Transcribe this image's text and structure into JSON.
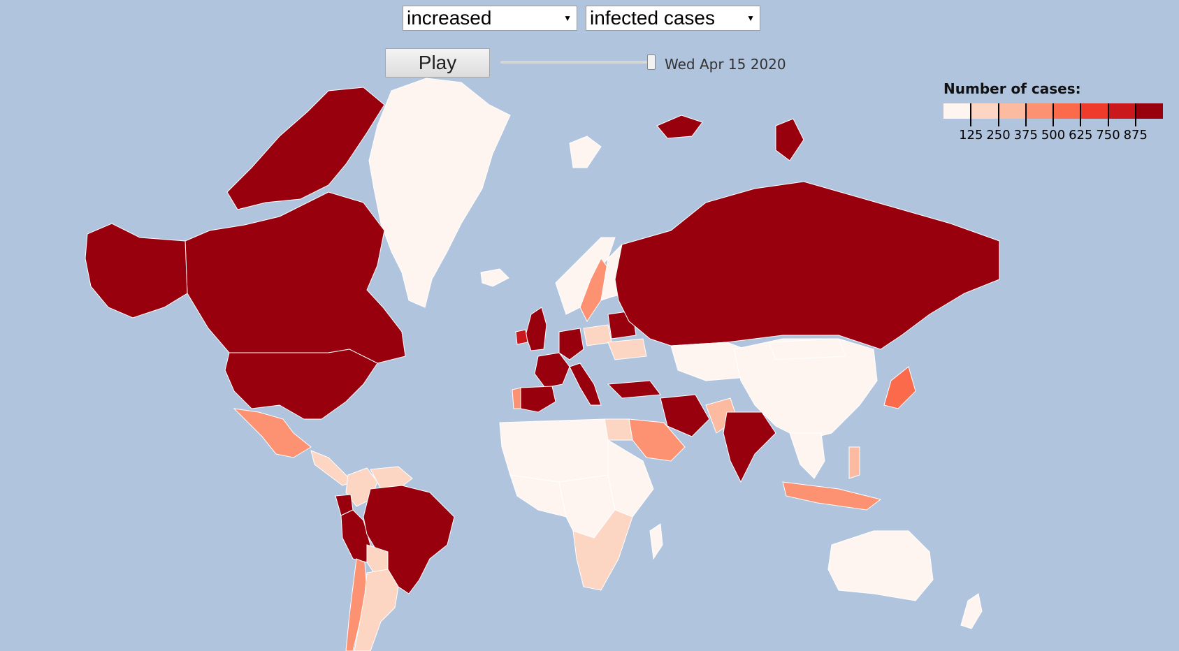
{
  "controls": {
    "mode_select": {
      "value": "increased"
    },
    "metric_select": {
      "value": "infected cases"
    },
    "play_button": {
      "label": "Play"
    },
    "date_slider": {
      "position": 1.0
    },
    "date_label": "Wed Apr 15 2020"
  },
  "legend": {
    "title": "Number of cases:",
    "colors": [
      "#fff5f0",
      "#fdd5c3",
      "#fcbba1",
      "#fc9272",
      "#fb6a4a",
      "#ef3b2c",
      "#cb181d",
      "#99000d"
    ],
    "ticks": [
      "125",
      "250",
      "375",
      "500",
      "625",
      "750",
      "875"
    ]
  },
  "map": {
    "ocean_color": "#b0c4de",
    "countries": [
      {
        "name": "Greenland",
        "bin": 0
      },
      {
        "name": "Canada",
        "bin": 7
      },
      {
        "name": "United States",
        "bin": 7
      },
      {
        "name": "Alaska",
        "bin": 7
      },
      {
        "name": "Mexico",
        "bin": 3
      },
      {
        "name": "Central America",
        "bin": 1
      },
      {
        "name": "Colombia",
        "bin": 1
      },
      {
        "name": "Venezuela",
        "bin": 1
      },
      {
        "name": "Ecuador",
        "bin": 7
      },
      {
        "name": "Peru",
        "bin": 7
      },
      {
        "name": "Brazil",
        "bin": 7
      },
      {
        "name": "Bolivia",
        "bin": 1
      },
      {
        "name": "Chile",
        "bin": 3
      },
      {
        "name": "Argentina",
        "bin": 1
      },
      {
        "name": "Iceland",
        "bin": 0
      },
      {
        "name": "Norway",
        "bin": 0
      },
      {
        "name": "Sweden",
        "bin": 3
      },
      {
        "name": "Finland",
        "bin": 0
      },
      {
        "name": "United Kingdom",
        "bin": 7
      },
      {
        "name": "Ireland",
        "bin": 6
      },
      {
        "name": "France",
        "bin": 7
      },
      {
        "name": "Spain",
        "bin": 7
      },
      {
        "name": "Portugal",
        "bin": 3
      },
      {
        "name": "Germany",
        "bin": 7
      },
      {
        "name": "Italy",
        "bin": 7
      },
      {
        "name": "Poland",
        "bin": 1
      },
      {
        "name": "Ukraine",
        "bin": 1
      },
      {
        "name": "Belarus",
        "bin": 7
      },
      {
        "name": "Turkey",
        "bin": 7
      },
      {
        "name": "Russia",
        "bin": 7
      },
      {
        "name": "Kazakhstan",
        "bin": 0
      },
      {
        "name": "Iran",
        "bin": 7
      },
      {
        "name": "Saudi Arabia",
        "bin": 3
      },
      {
        "name": "Egypt",
        "bin": 1
      },
      {
        "name": "Pakistan",
        "bin": 2
      },
      {
        "name": "India",
        "bin": 7
      },
      {
        "name": "China",
        "bin": 0
      },
      {
        "name": "Mongolia",
        "bin": 0
      },
      {
        "name": "Japan",
        "bin": 4
      },
      {
        "name": "Southeast Asia",
        "bin": 0
      },
      {
        "name": "Philippines",
        "bin": 2
      },
      {
        "name": "Indonesia",
        "bin": 3
      },
      {
        "name": "North Africa",
        "bin": 0
      },
      {
        "name": "West Africa",
        "bin": 0
      },
      {
        "name": "Central Africa",
        "bin": 0
      },
      {
        "name": "East Africa",
        "bin": 0
      },
      {
        "name": "South Africa",
        "bin": 1
      },
      {
        "name": "Madagascar",
        "bin": 0
      },
      {
        "name": "Australia",
        "bin": 0
      },
      {
        "name": "New Zealand",
        "bin": 0
      },
      {
        "name": "Svalbard",
        "bin": 0
      },
      {
        "name": "Franz Josef Land",
        "bin": 7
      },
      {
        "name": "Novaya Zemlya",
        "bin": 7
      }
    ]
  }
}
